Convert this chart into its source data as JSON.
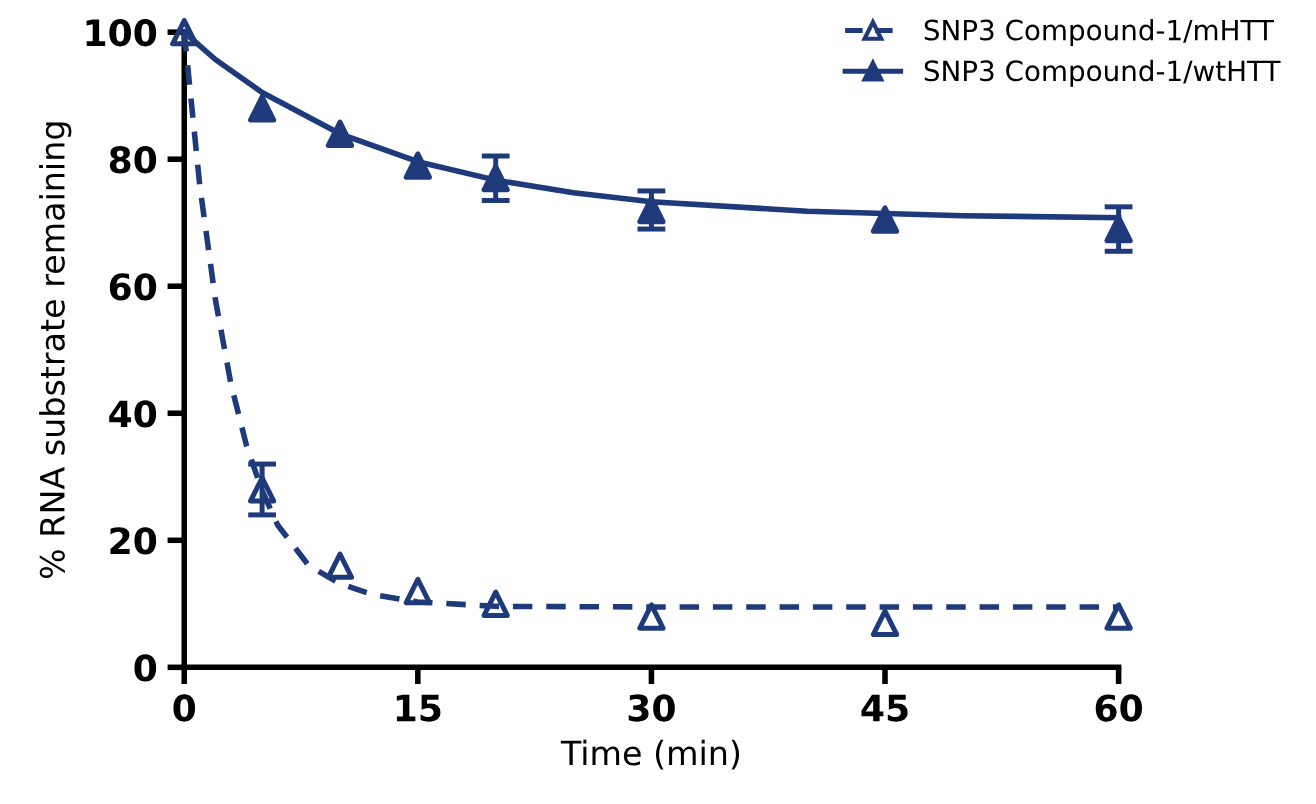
{
  "chart_data": {
    "type": "scatter",
    "xlabel": "Time (min)",
    "ylabel": "% RNA substrate remaining",
    "xlim": [
      0,
      60
    ],
    "xticks": [
      0,
      15,
      30,
      45,
      60
    ],
    "ylim": [
      0,
      100
    ],
    "yticks": [
      0,
      20,
      40,
      60,
      80,
      100
    ],
    "grid": false,
    "legend": "top right",
    "series": [
      {
        "name": "SNP3 Compound-1/mHTT",
        "color": "#1f3a7a",
        "marker": "triangle_open",
        "line_style": "dashed",
        "x": [
          0,
          5,
          10,
          15,
          20,
          30,
          45,
          60
        ],
        "values": [
          100,
          28,
          16,
          12,
          10,
          8,
          7,
          8
        ],
        "errors": [
          null,
          4,
          null,
          null,
          null,
          null,
          null,
          null
        ]
      },
      {
        "name": "SNP3 Compound-1/wtHTT",
        "color": "#1f3a7a",
        "marker": "triangle",
        "line_style": "solid",
        "x": [
          5,
          10,
          15,
          20,
          30,
          45,
          60
        ],
        "values": [
          88,
          84,
          79,
          77,
          72,
          70.5,
          69
        ],
        "errors": [
          null,
          null,
          null,
          3.5,
          3,
          null,
          3.5
        ]
      },
      {
        "type": "line",
        "color": "#1f3a7a",
        "line_style": "dashed",
        "x": [
          0,
          1,
          2,
          3,
          4,
          5,
          6,
          8,
          10,
          12,
          15,
          20,
          30,
          45,
          60
        ],
        "values": [
          100,
          75.8,
          57.9,
          44.6,
          34.9,
          27.8,
          22.4,
          16,
          13.2,
          11.5,
          10.3,
          9.6,
          9.5,
          9.5,
          9.5
        ]
      },
      {
        "type": "line",
        "color": "#1f3a7a",
        "line_style": "solid",
        "x": [
          0,
          2,
          5,
          10,
          15,
          20,
          25,
          30,
          40,
          50,
          60
        ],
        "values": [
          100,
          95.7,
          90.5,
          84,
          79.6,
          76.7,
          74.7,
          73.3,
          71.8,
          71.1,
          70.8
        ]
      }
    ]
  }
}
